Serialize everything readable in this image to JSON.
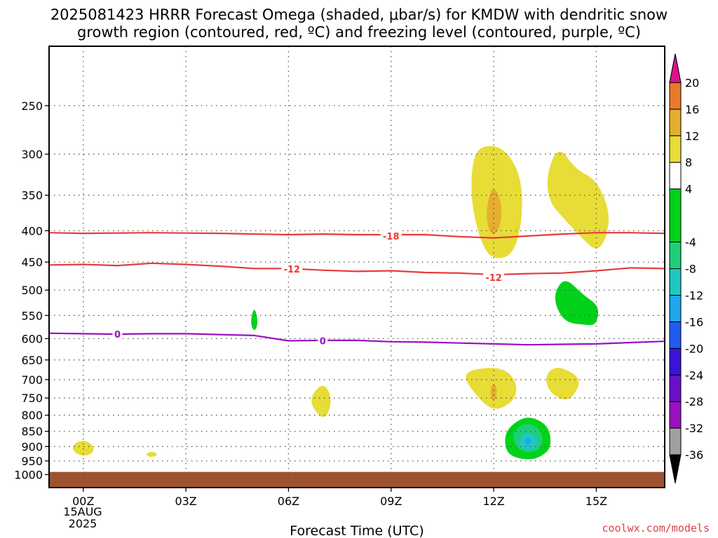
{
  "title_line1": "2025081423 HRRR Forecast Omega (shaded, μbar/s) for KMDW with dendritic snow",
  "title_line2": "growth region (contoured, red, ºC) and freezing level (contoured, purple, ºC)",
  "credit": "coolwx.com/models",
  "chart_data": {
    "type": "time-height cross section",
    "xlabel": "Forecast Time (UTC)",
    "ylabel": "",
    "x_ticks": [
      {
        "hour": 0,
        "label": "00Z"
      },
      {
        "hour": 3,
        "label": "03Z"
      },
      {
        "hour": 6,
        "label": "06Z"
      },
      {
        "hour": 9,
        "label": "09Z"
      },
      {
        "hour": 12,
        "label": "12Z"
      },
      {
        "hour": 15,
        "label": "15Z"
      }
    ],
    "date_label_1": "15AUG",
    "date_label_2": "2025",
    "xlim_hours": [
      -1,
      17
    ],
    "y_ticks": [
      250,
      300,
      350,
      400,
      450,
      500,
      550,
      600,
      650,
      700,
      750,
      800,
      850,
      900,
      950,
      1000
    ],
    "ylim_mb": [
      1050,
      200
    ],
    "y_scale": "log-pressure",
    "grid": true,
    "ground": {
      "top_mb": 990,
      "color": "#a0522d"
    },
    "colorbar": {
      "levels": [
        -36,
        -32,
        -28,
        -24,
        -20,
        -16,
        -12,
        -8,
        -4,
        4,
        8,
        12,
        16,
        20
      ],
      "bands": [
        {
          "lo": -40,
          "hi": -36,
          "color": "#000000"
        },
        {
          "lo": -36,
          "hi": -32,
          "color": "#a0a0a0"
        },
        {
          "lo": -32,
          "hi": -28,
          "color": "#9a10c0"
        },
        {
          "lo": -28,
          "hi": -24,
          "color": "#6a10c8"
        },
        {
          "lo": -24,
          "hi": -20,
          "color": "#3a14d8"
        },
        {
          "lo": -20,
          "hi": -16,
          "color": "#1f5cf0"
        },
        {
          "lo": -16,
          "hi": -12,
          "color": "#1ea6ee"
        },
        {
          "lo": -12,
          "hi": -8,
          "color": "#1ec8c0"
        },
        {
          "lo": -8,
          "hi": -4,
          "color": "#1ecf78"
        },
        {
          "lo": -4,
          "hi": 4,
          "color": "#00d21a"
        },
        {
          "lo": 4,
          "hi": 8,
          "color": "#ffffff"
        },
        {
          "lo": 8,
          "hi": 12,
          "color": "#e8dc36"
        },
        {
          "lo": 12,
          "hi": 16,
          "color": "#e6ae30"
        },
        {
          "lo": 16,
          "hi": 20,
          "color": "#ea7a2a"
        },
        {
          "lo": 20,
          "hi": 24,
          "color": "#ec3a3a"
        },
        {
          "lo": 24,
          "hi": 28,
          "color": "#e0108a"
        }
      ]
    },
    "contours": [
      {
        "name": "-18",
        "color": "#e83a3a",
        "label": "-18",
        "label_at": [
          [
            9,
            408
          ]
        ],
        "points": [
          [
            -1,
            403
          ],
          [
            0,
            404
          ],
          [
            2,
            403
          ],
          [
            4,
            404
          ],
          [
            5,
            405
          ],
          [
            6,
            406
          ],
          [
            7,
            405
          ],
          [
            8,
            406
          ],
          [
            9,
            406
          ],
          [
            10,
            406
          ],
          [
            11,
            409
          ],
          [
            12,
            411
          ],
          [
            13,
            408
          ],
          [
            14,
            405
          ],
          [
            15,
            403
          ],
          [
            16,
            403
          ],
          [
            17,
            404
          ]
        ]
      },
      {
        "name": "-12",
        "color": "#e83a3a",
        "label": "-12",
        "label_at": [
          [
            6.1,
            462
          ],
          [
            12,
            477
          ]
        ],
        "points": [
          [
            -1,
            455
          ],
          [
            0,
            454
          ],
          [
            1,
            456
          ],
          [
            2,
            452
          ],
          [
            3,
            454
          ],
          [
            4,
            457
          ],
          [
            5,
            461
          ],
          [
            6,
            461
          ],
          [
            7,
            464
          ],
          [
            8,
            466
          ],
          [
            9,
            465
          ],
          [
            10,
            468
          ],
          [
            11,
            469
          ],
          [
            12,
            472
          ],
          [
            13,
            470
          ],
          [
            14,
            469
          ],
          [
            15,
            465
          ],
          [
            16,
            460
          ],
          [
            17,
            461
          ]
        ]
      },
      {
        "name": "0",
        "color": "#9a10c0",
        "label": "0",
        "label_at": [
          [
            1,
            590
          ],
          [
            7,
            605
          ]
        ],
        "points": [
          [
            -1,
            588
          ],
          [
            0,
            589
          ],
          [
            1,
            590
          ],
          [
            2,
            589
          ],
          [
            3,
            589
          ],
          [
            4,
            591
          ],
          [
            5,
            593
          ],
          [
            6,
            605
          ],
          [
            7,
            604
          ],
          [
            8,
            604
          ],
          [
            9,
            607
          ],
          [
            10,
            608
          ],
          [
            11,
            610
          ],
          [
            12,
            612
          ],
          [
            13,
            614
          ],
          [
            14,
            613
          ],
          [
            15,
            612
          ],
          [
            16,
            609
          ],
          [
            17,
            606
          ]
        ]
      }
    ],
    "shaded_regions": [
      {
        "name": "omega-4-8-a",
        "value": 6,
        "color": "#e8dc36",
        "points": [
          [
            11.6,
            290
          ],
          [
            12.3,
            292
          ],
          [
            12.8,
            325
          ],
          [
            12.85,
            380
          ],
          [
            12.6,
            435
          ],
          [
            12.1,
            447
          ],
          [
            11.7,
            430
          ],
          [
            11.35,
            365
          ],
          [
            11.35,
            312
          ]
        ]
      },
      {
        "name": "omega-8-12-a",
        "value": 10,
        "color": "#e6ae30",
        "points": [
          [
            12.0,
            336
          ],
          [
            12.25,
            362
          ],
          [
            12.2,
            392
          ],
          [
            12.0,
            410
          ],
          [
            11.8,
            392
          ],
          [
            11.8,
            360
          ]
        ]
      },
      {
        "name": "omega-4-8-b",
        "value": 6,
        "color": "#e8dc36",
        "points": [
          [
            13.9,
            290
          ],
          [
            14.4,
            318
          ],
          [
            15.0,
            330
          ],
          [
            15.4,
            372
          ],
          [
            15.3,
            412
          ],
          [
            15.0,
            433
          ],
          [
            14.6,
            412
          ],
          [
            14.1,
            385
          ],
          [
            13.6,
            358
          ],
          [
            13.55,
            322
          ]
        ]
      },
      {
        "name": "omega-neg-a",
        "value": -6,
        "color": "#00d21a",
        "points": [
          [
            14.1,
            477
          ],
          [
            14.6,
            508
          ],
          [
            15.1,
            532
          ],
          [
            15.0,
            570
          ],
          [
            14.7,
            570
          ],
          [
            14.1,
            565
          ],
          [
            13.8,
            530
          ],
          [
            13.8,
            500
          ]
        ]
      },
      {
        "name": "omega-neg-b",
        "value": -6,
        "color": "#00d21a",
        "points": [
          [
            5.0,
            530
          ],
          [
            5.12,
            565
          ],
          [
            5.0,
            586
          ],
          [
            4.88,
            565
          ]
        ]
      },
      {
        "name": "omega-4-8-c",
        "value": 6,
        "color": "#e8dc36",
        "points": [
          [
            11.4,
            672
          ],
          [
            12.3,
            668
          ],
          [
            12.7,
            710
          ],
          [
            12.6,
            760
          ],
          [
            12.0,
            790
          ],
          [
            11.5,
            745
          ],
          [
            11.1,
            692
          ]
        ]
      },
      {
        "name": "omega-8-12-b",
        "value": 10,
        "color": "#e6ae30",
        "points": [
          [
            12.0,
            705
          ],
          [
            12.12,
            730
          ],
          [
            12.0,
            768
          ],
          [
            11.88,
            730
          ]
        ]
      },
      {
        "name": "omega-4-8-d",
        "value": 6,
        "color": "#e8dc36",
        "points": [
          [
            13.8,
            665
          ],
          [
            14.3,
            680
          ],
          [
            14.55,
            705
          ],
          [
            14.3,
            750
          ],
          [
            14.0,
            757
          ],
          [
            13.6,
            730
          ],
          [
            13.5,
            690
          ]
        ]
      },
      {
        "name": "omega-4-8-e",
        "value": 6,
        "color": "#e8dc36",
        "points": [
          [
            7.0,
            708
          ],
          [
            7.25,
            740
          ],
          [
            7.2,
            790
          ],
          [
            7.0,
            812
          ],
          [
            6.7,
            778
          ],
          [
            6.65,
            745
          ]
        ]
      },
      {
        "name": "omega-4-8-f",
        "value": 6,
        "color": "#e8dc36",
        "points": [
          [
            0.0,
            877
          ],
          [
            0.3,
            895
          ],
          [
            0.3,
            922
          ],
          [
            0.0,
            935
          ],
          [
            -0.3,
            918
          ],
          [
            -0.3,
            892
          ]
        ]
      },
      {
        "name": "omega-4-8-g",
        "value": 6,
        "color": "#e8dc36",
        "points": [
          [
            2.0,
            915
          ],
          [
            2.2,
            928
          ],
          [
            2.0,
            938
          ],
          [
            1.8,
            928
          ]
        ]
      },
      {
        "name": "omega-neg-c",
        "value": -6,
        "color": "#00d21a",
        "points": [
          [
            13.0,
            800
          ],
          [
            13.6,
            830
          ],
          [
            13.7,
            900
          ],
          [
            13.4,
            935
          ],
          [
            13.0,
            948
          ],
          [
            12.4,
            930
          ],
          [
            12.3,
            870
          ],
          [
            12.5,
            830
          ]
        ]
      },
      {
        "name": "omega-neg-d",
        "value": -10,
        "color": "#1ecf78",
        "points": [
          [
            13.0,
            820
          ],
          [
            13.4,
            848
          ],
          [
            13.45,
            895
          ],
          [
            13.2,
            920
          ],
          [
            12.8,
            918
          ],
          [
            12.55,
            880
          ],
          [
            12.6,
            845
          ]
        ]
      },
      {
        "name": "omega-neg-e",
        "value": -14,
        "color": "#1ec8c0",
        "points": [
          [
            13.0,
            848
          ],
          [
            13.3,
            870
          ],
          [
            13.25,
            905
          ],
          [
            13.0,
            912
          ],
          [
            12.75,
            902
          ],
          [
            12.75,
            870
          ]
        ]
      },
      {
        "name": "omega-neg-f",
        "value": -18,
        "color": "#1ea6ee",
        "points": [
          [
            12.95,
            868
          ],
          [
            13.1,
            878
          ],
          [
            13.05,
            896
          ],
          [
            12.9,
            892
          ]
        ]
      }
    ]
  }
}
